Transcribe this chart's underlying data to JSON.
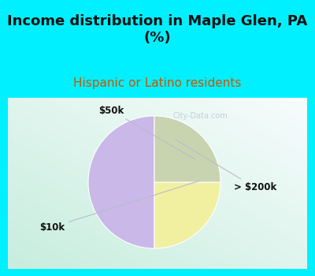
{
  "title": "Income distribution in Maple Glen, PA\n(%)",
  "subtitle": "Hispanic or Latino residents",
  "slices": [
    {
      "label": "> $200k",
      "value": 50,
      "color": "#c9b8e8"
    },
    {
      "label": "$50k",
      "value": 25,
      "color": "#f0f0a0"
    },
    {
      "label": "$10k",
      "value": 25,
      "color": "#c8d4b0"
    }
  ],
  "title_fontsize": 13,
  "subtitle_fontsize": 11,
  "title_color": "#111111",
  "subtitle_color": "#cc5500",
  "title_bg": "#00f0ff",
  "watermark": "City-Data.com",
  "start_angle": 90,
  "label_fontsize": 8.5,
  "cyan_border": "#00f0ff",
  "border_thickness": 0.03
}
